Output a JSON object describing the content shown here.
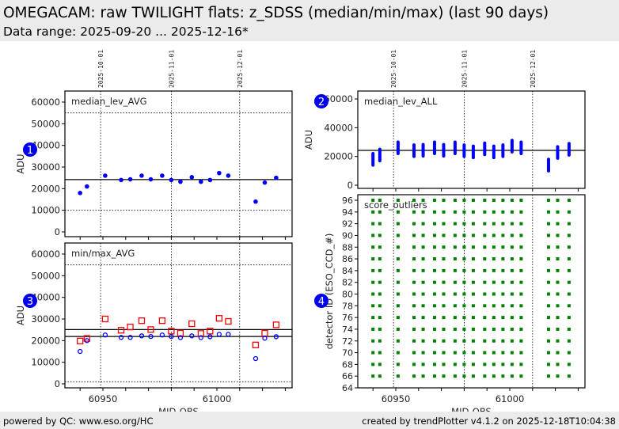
{
  "header": {
    "title": "OMEGACAM: raw TWILIGHT flats: z_SDSS (median/min/max) (last 90 days)",
    "subtitle": "Data range: 2025-09-20 ... 2025-12-16*"
  },
  "footer": {
    "left": "powered by QC: www.eso.org/HC",
    "right": "created by trendPlotter v4.1.2 on 2025-12-18T10:04:38"
  },
  "colors": {
    "blue": "#0000ff",
    "red": "#ff0000",
    "green": "#008000",
    "marker": "#0000ee"
  },
  "chart_data": {
    "type": "scatter",
    "mjd": [
      60940,
      60943,
      60951,
      60958,
      60962,
      60967,
      60971,
      60976,
      60980,
      60984,
      60989,
      60993,
      60997,
      61001,
      61005,
      61017,
      61021,
      61026
    ],
    "date_markers": [
      {
        "label": "2025-10-01",
        "mjd": 60949
      },
      {
        "label": "2025-11-01",
        "mjd": 60980
      },
      {
        "label": "2025-12-01",
        "mjd": 61010
      }
    ],
    "xlabel": "MJD-OBS",
    "xticklabels": [
      "60950",
      "61000"
    ],
    "xlim": [
      60935,
      61033
    ],
    "panels": [
      {
        "id": "1",
        "title": "median_lev_AVG",
        "ylabel": "ADU",
        "ylim": [
          -2000,
          65000
        ],
        "yticks": [
          0,
          10000,
          20000,
          30000,
          40000,
          50000,
          60000
        ],
        "series": [
          {
            "name": "median_lev_AVG",
            "marker": "dot",
            "color": "#0000ff",
            "values": [
              18000,
              21000,
              26000,
              24000,
              24300,
              26000,
              24300,
              26000,
              24000,
              23200,
              25300,
              23200,
              24000,
              27200,
              26000,
              14000,
              22800,
              25000
            ]
          }
        ],
        "ref_lines": [
          24200
        ],
        "threshold_lines": [
          55000,
          10000
        ]
      },
      {
        "id": "2",
        "title": "median_lev_ALL",
        "ylabel": "ADU",
        "ylim": [
          -2000,
          65000
        ],
        "yticks": [
          0,
          20000,
          40000,
          60000
        ],
        "series": [
          {
            "name": "median_lev_ALL",
            "marker": "range",
            "color": "#0000ff",
            "values": [
              18000,
              21000,
              26000,
              24000,
              24300,
              26000,
              24300,
              26000,
              24000,
              23200,
              25300,
              23200,
              24000,
              27200,
              26000,
              14000,
              22800,
              25000
            ],
            "spread": 4000
          }
        ],
        "ref_lines": [
          24200
        ],
        "threshold_lines": []
      },
      {
        "id": "3",
        "title": "min/max_AVG",
        "ylabel": "ADU",
        "ylim": [
          -2000,
          65000
        ],
        "yticks": [
          0,
          10000,
          20000,
          30000,
          40000,
          50000,
          60000
        ],
        "series": [
          {
            "name": "max",
            "marker": "square",
            "color": "#ff0000",
            "values": [
              19800,
              21000,
              30000,
              24800,
              26300,
              29200,
              25100,
              29200,
              24400,
              23400,
              27800,
              23300,
              24400,
              30300,
              28900,
              18000,
              23400,
              27300
            ]
          },
          {
            "name": "min",
            "marker": "circle",
            "color": "#0000ff",
            "values": [
              15000,
              20000,
              22600,
              21500,
              21500,
              22200,
              21900,
              22600,
              21900,
              21400,
              22200,
              21400,
              21800,
              22900,
              22900,
              11700,
              21100,
              21800
            ]
          }
        ],
        "ref_lines": [
          25100,
          21900
        ],
        "threshold_lines": [
          55000,
          1000
        ]
      },
      {
        "id": "4",
        "title": "score_outliers",
        "ylabel": "detector ID (ESO_CCD_#)",
        "ylim": [
          64,
          96.8
        ],
        "yticks": [
          64,
          66,
          68,
          70,
          72,
          74,
          76,
          78,
          80,
          82,
          84,
          86,
          88,
          90,
          92,
          94,
          96
        ],
        "series": [
          {
            "name": "score_outliers",
            "marker": "small-square",
            "color": "#008000",
            "detectors": [
              66,
              68,
              70,
              72,
              74,
              76,
              78,
              80,
              82,
              84,
              86,
              88,
              90,
              92,
              94,
              96
            ]
          }
        ],
        "ref_lines": [],
        "threshold_lines": []
      }
    ]
  }
}
